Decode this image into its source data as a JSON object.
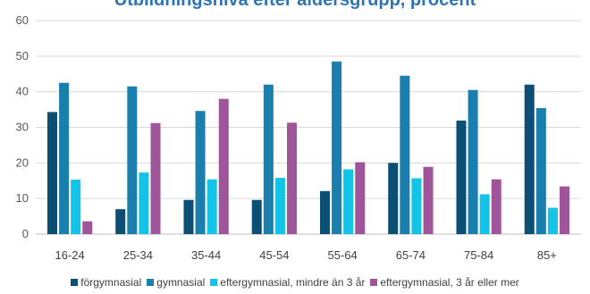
{
  "chart_data": {
    "type": "bar",
    "title": "Utbildningsnivå efter åldersgrupp, procent",
    "categories": [
      "16-24",
      "25-34",
      "35-44",
      "45-54",
      "55-64",
      "65-74",
      "75-84",
      "85+"
    ],
    "series": [
      {
        "name": "förgymnasial",
        "color": "#0b4f75",
        "values": [
          34.3,
          7.0,
          9.6,
          9.6,
          12.1,
          20.0,
          31.9,
          42.0
        ]
      },
      {
        "name": "gymnasial",
        "color": "#1a7fad",
        "values": [
          42.5,
          41.5,
          34.6,
          42.0,
          48.5,
          44.5,
          40.5,
          35.4
        ]
      },
      {
        "name": "eftergymnasial, mindre än 3 år",
        "color": "#14c3e8",
        "values": [
          15.3,
          17.3,
          15.4,
          15.8,
          18.2,
          15.7,
          11.2,
          7.4
        ]
      },
      {
        "name": "eftergymnasial, 3 år eller mer",
        "color": "#a0559a",
        "values": [
          3.6,
          31.2,
          38.0,
          31.3,
          20.2,
          18.9,
          15.4,
          13.4
        ]
      }
    ],
    "ylim": [
      0,
      60
    ],
    "yticks": [
      0,
      10,
      20,
      30,
      40,
      50,
      60
    ],
    "grid": true,
    "legend_position": "bottom"
  }
}
